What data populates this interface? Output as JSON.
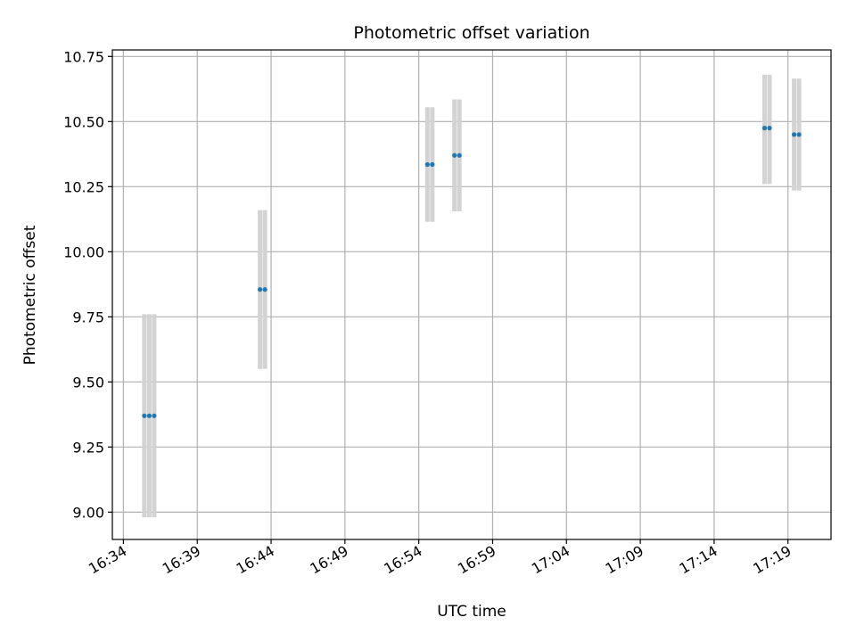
{
  "chart_data": {
    "type": "scatter",
    "title": "Photometric offset variation",
    "xlabel": "UTC time",
    "ylabel": "Photometric offset",
    "xlim": [
      "16:33:15",
      "17:21:55"
    ],
    "ylim": [
      8.895,
      10.775
    ],
    "grid": true,
    "x_ticks": [
      "16:34",
      "16:39",
      "16:44",
      "16:49",
      "16:54",
      "16:59",
      "17:04",
      "17:09",
      "17:14",
      "17:19"
    ],
    "y_ticks": [
      "9.00",
      "9.25",
      "9.50",
      "9.75",
      "10.00",
      "10.25",
      "10.50",
      "10.75"
    ],
    "series": [
      {
        "color": "#1f77b4",
        "error_color": "#d3d3d3",
        "points": [
          {
            "t": "16:35:25",
            "y": 9.37,
            "lo": 8.98,
            "hi": 9.76
          },
          {
            "t": "16:35:45",
            "y": 9.37,
            "lo": 8.98,
            "hi": 9.76
          },
          {
            "t": "16:36:05",
            "y": 9.37,
            "lo": 8.98,
            "hi": 9.76
          },
          {
            "t": "16:43:15",
            "y": 9.855,
            "lo": 9.55,
            "hi": 10.16
          },
          {
            "t": "16:43:35",
            "y": 9.855,
            "lo": 9.55,
            "hi": 10.16
          },
          {
            "t": "16:54:35",
            "y": 10.335,
            "lo": 10.115,
            "hi": 10.555
          },
          {
            "t": "16:54:55",
            "y": 10.335,
            "lo": 10.115,
            "hi": 10.555
          },
          {
            "t": "16:56:25",
            "y": 10.37,
            "lo": 10.155,
            "hi": 10.585
          },
          {
            "t": "16:56:45",
            "y": 10.37,
            "lo": 10.155,
            "hi": 10.585
          },
          {
            "t": "17:17:25",
            "y": 10.475,
            "lo": 10.26,
            "hi": 10.68
          },
          {
            "t": "17:17:45",
            "y": 10.475,
            "lo": 10.26,
            "hi": 10.68
          },
          {
            "t": "17:19:25",
            "y": 10.45,
            "lo": 10.235,
            "hi": 10.665
          },
          {
            "t": "17:19:45",
            "y": 10.45,
            "lo": 10.235,
            "hi": 10.665
          }
        ]
      }
    ]
  }
}
